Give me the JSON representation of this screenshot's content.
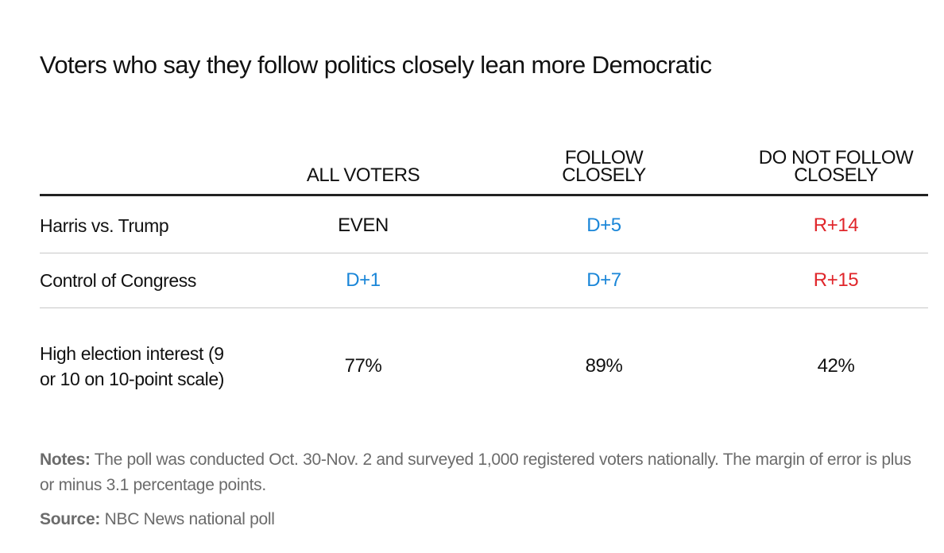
{
  "title": "Voters who say they follow politics closely lean more Democratic",
  "table": {
    "header": [
      "ALL VOTERS",
      "FOLLOW CLOSELY",
      "DO NOT FOLLOW CLOSELY"
    ],
    "rows": [
      {
        "label": "Harris vs. Trump",
        "cells": [
          {
            "text": "EVEN",
            "color": "#111111"
          },
          {
            "text": "D+5",
            "color": "#1a86d8"
          },
          {
            "text": "R+14",
            "color": "#e0262b"
          }
        ]
      },
      {
        "label": "Control of Congress",
        "cells": [
          {
            "text": "D+1",
            "color": "#1a86d8"
          },
          {
            "text": "D+7",
            "color": "#1a86d8"
          },
          {
            "text": "R+15",
            "color": "#e0262b"
          }
        ]
      },
      {
        "label": "High election interest (9 or 10 on 10-point scale)",
        "cells": [
          {
            "text": "77%",
            "color": "#111111"
          },
          {
            "text": "89%",
            "color": "#111111"
          },
          {
            "text": "42%",
            "color": "#111111"
          }
        ]
      }
    ]
  },
  "notes": {
    "label": "Notes:",
    "text": "The poll was conducted Oct. 30-Nov. 2 and surveyed 1,000 registered voters nationally. The margin of error is plus or minus 3.1 percentage points."
  },
  "source": {
    "label": "Source:",
    "text": "NBC News national poll"
  }
}
